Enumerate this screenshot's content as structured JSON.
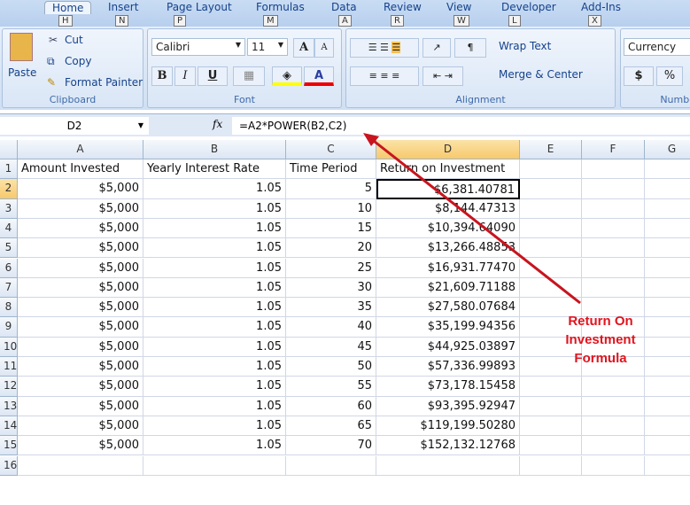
{
  "ribbon": {
    "tabs": [
      {
        "label": "Home",
        "key": "H"
      },
      {
        "label": "Insert",
        "key": "N"
      },
      {
        "label": "Page Layout",
        "key": "P"
      },
      {
        "label": "Formulas",
        "key": "M"
      },
      {
        "label": "Data",
        "key": "A"
      },
      {
        "label": "Review",
        "key": "R"
      },
      {
        "label": "View",
        "key": "W"
      },
      {
        "label": "Developer",
        "key": "L"
      },
      {
        "label": "Add-Ins",
        "key": "X"
      }
    ],
    "clipboard": {
      "label": "Clipboard",
      "paste": "Paste",
      "cut": "Cut",
      "copy": "Copy",
      "format_painter": "Format Painter"
    },
    "font": {
      "label": "Font",
      "name": "Calibri",
      "size": "11",
      "bold": "B",
      "italic": "I",
      "underline": "U",
      "font_color": "A",
      "grow": "A",
      "shrink": "A"
    },
    "alignment": {
      "label": "Alignment",
      "wrap_text": "Wrap Text",
      "merge_center": "Merge & Center"
    },
    "number": {
      "label": "Numbe",
      "format": "Currency",
      "dollar": "$",
      "percent": "%"
    }
  },
  "formula_bar": {
    "name_box": "D2",
    "fx": "fx",
    "formula": "=A2*POWER(B2,C2)"
  },
  "sheet": {
    "columns": [
      "A",
      "B",
      "C",
      "D",
      "E",
      "F",
      "G"
    ],
    "selected_column": "D",
    "headers": [
      "Amount Invested",
      "Yearly Interest Rate",
      "Time Period",
      "Return on Investment"
    ],
    "rows": [
      [
        "$5,000",
        "1.05",
        "5",
        "$6,381.40781"
      ],
      [
        "$5,000",
        "1.05",
        "10",
        "$8,144.47313"
      ],
      [
        "$5,000",
        "1.05",
        "15",
        "$10,394.64090"
      ],
      [
        "$5,000",
        "1.05",
        "20",
        "$13,266.48853"
      ],
      [
        "$5,000",
        "1.05",
        "25",
        "$16,931.77470"
      ],
      [
        "$5,000",
        "1.05",
        "30",
        "$21,609.71188"
      ],
      [
        "$5,000",
        "1.05",
        "35",
        "$27,580.07684"
      ],
      [
        "$5,000",
        "1.05",
        "40",
        "$35,199.94356"
      ],
      [
        "$5,000",
        "1.05",
        "45",
        "$44,925.03897"
      ],
      [
        "$5,000",
        "1.05",
        "50",
        "$57,336.99893"
      ],
      [
        "$5,000",
        "1.05",
        "55",
        "$73,178.15458"
      ],
      [
        "$5,000",
        "1.05",
        "60",
        "$93,395.92947"
      ],
      [
        "$5,000",
        "1.05",
        "65",
        "$119,199.50280"
      ],
      [
        "$5,000",
        "1.05",
        "70",
        "$152,132.12768"
      ]
    ],
    "last_row_number": "16"
  },
  "annotation": {
    "text": "Return On Investment Formula",
    "color": "#e0141e"
  }
}
